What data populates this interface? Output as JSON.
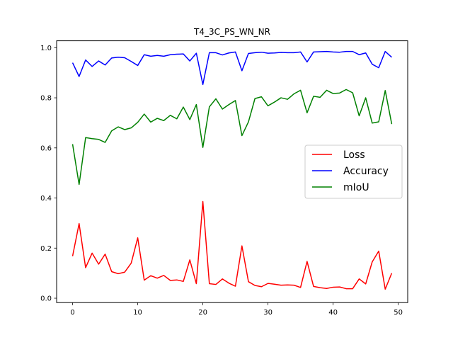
{
  "chart_data": {
    "type": "line",
    "title": "T4_3C_PS_WN_NR",
    "xlabel": "",
    "ylabel": "",
    "xlim": [
      -2.45,
      51.45
    ],
    "ylim": [
      -0.0175,
      1.0275
    ],
    "xticks": [
      0,
      10,
      20,
      30,
      40,
      50
    ],
    "yticks": [
      0.0,
      0.2,
      0.4,
      0.6,
      0.8,
      1.0
    ],
    "xtick_labels": [
      "0",
      "10",
      "20",
      "30",
      "40",
      "50"
    ],
    "ytick_labels": [
      "0.0",
      "0.2",
      "0.4",
      "0.6",
      "0.8",
      "1.0"
    ],
    "grid": false,
    "legend": "center-right",
    "x": [
      0,
      1,
      2,
      3,
      4,
      5,
      6,
      7,
      8,
      9,
      10,
      11,
      12,
      13,
      14,
      15,
      16,
      17,
      18,
      19,
      20,
      21,
      22,
      23,
      24,
      25,
      26,
      27,
      28,
      29,
      30,
      31,
      32,
      33,
      34,
      35,
      36,
      37,
      38,
      39,
      40,
      41,
      42,
      43,
      44,
      45,
      46,
      47,
      48,
      49
    ],
    "series": [
      {
        "name": "Loss",
        "color": "#ff0000",
        "values": [
          0.168,
          0.298,
          0.122,
          0.18,
          0.136,
          0.176,
          0.106,
          0.098,
          0.104,
          0.14,
          0.241,
          0.072,
          0.09,
          0.08,
          0.091,
          0.071,
          0.073,
          0.067,
          0.153,
          0.058,
          0.386,
          0.058,
          0.055,
          0.077,
          0.06,
          0.048,
          0.209,
          0.066,
          0.051,
          0.046,
          0.059,
          0.056,
          0.052,
          0.053,
          0.052,
          0.043,
          0.147,
          0.047,
          0.042,
          0.039,
          0.044,
          0.045,
          0.038,
          0.038,
          0.077,
          0.057,
          0.145,
          0.188,
          0.036,
          0.1
        ]
      },
      {
        "name": "Accuracy",
        "color": "#0000ff",
        "values": [
          0.94,
          0.885,
          0.951,
          0.925,
          0.947,
          0.931,
          0.959,
          0.962,
          0.96,
          0.945,
          0.929,
          0.972,
          0.966,
          0.969,
          0.966,
          0.972,
          0.974,
          0.975,
          0.947,
          0.978,
          0.853,
          0.98,
          0.98,
          0.971,
          0.979,
          0.983,
          0.908,
          0.977,
          0.98,
          0.982,
          0.978,
          0.979,
          0.981,
          0.98,
          0.98,
          0.983,
          0.943,
          0.983,
          0.984,
          0.985,
          0.983,
          0.982,
          0.985,
          0.985,
          0.972,
          0.979,
          0.934,
          0.92,
          0.985,
          0.962
        ]
      },
      {
        "name": "mIoU",
        "color": "#008000",
        "values": [
          0.615,
          0.454,
          0.641,
          0.637,
          0.634,
          0.622,
          0.668,
          0.684,
          0.673,
          0.68,
          0.702,
          0.735,
          0.703,
          0.718,
          0.709,
          0.73,
          0.716,
          0.763,
          0.713,
          0.773,
          0.602,
          0.764,
          0.796,
          0.755,
          0.773,
          0.789,
          0.649,
          0.704,
          0.797,
          0.804,
          0.768,
          0.783,
          0.8,
          0.794,
          0.816,
          0.83,
          0.74,
          0.806,
          0.802,
          0.83,
          0.817,
          0.819,
          0.833,
          0.82,
          0.728,
          0.8,
          0.699,
          0.704,
          0.829,
          0.695
        ]
      }
    ]
  }
}
